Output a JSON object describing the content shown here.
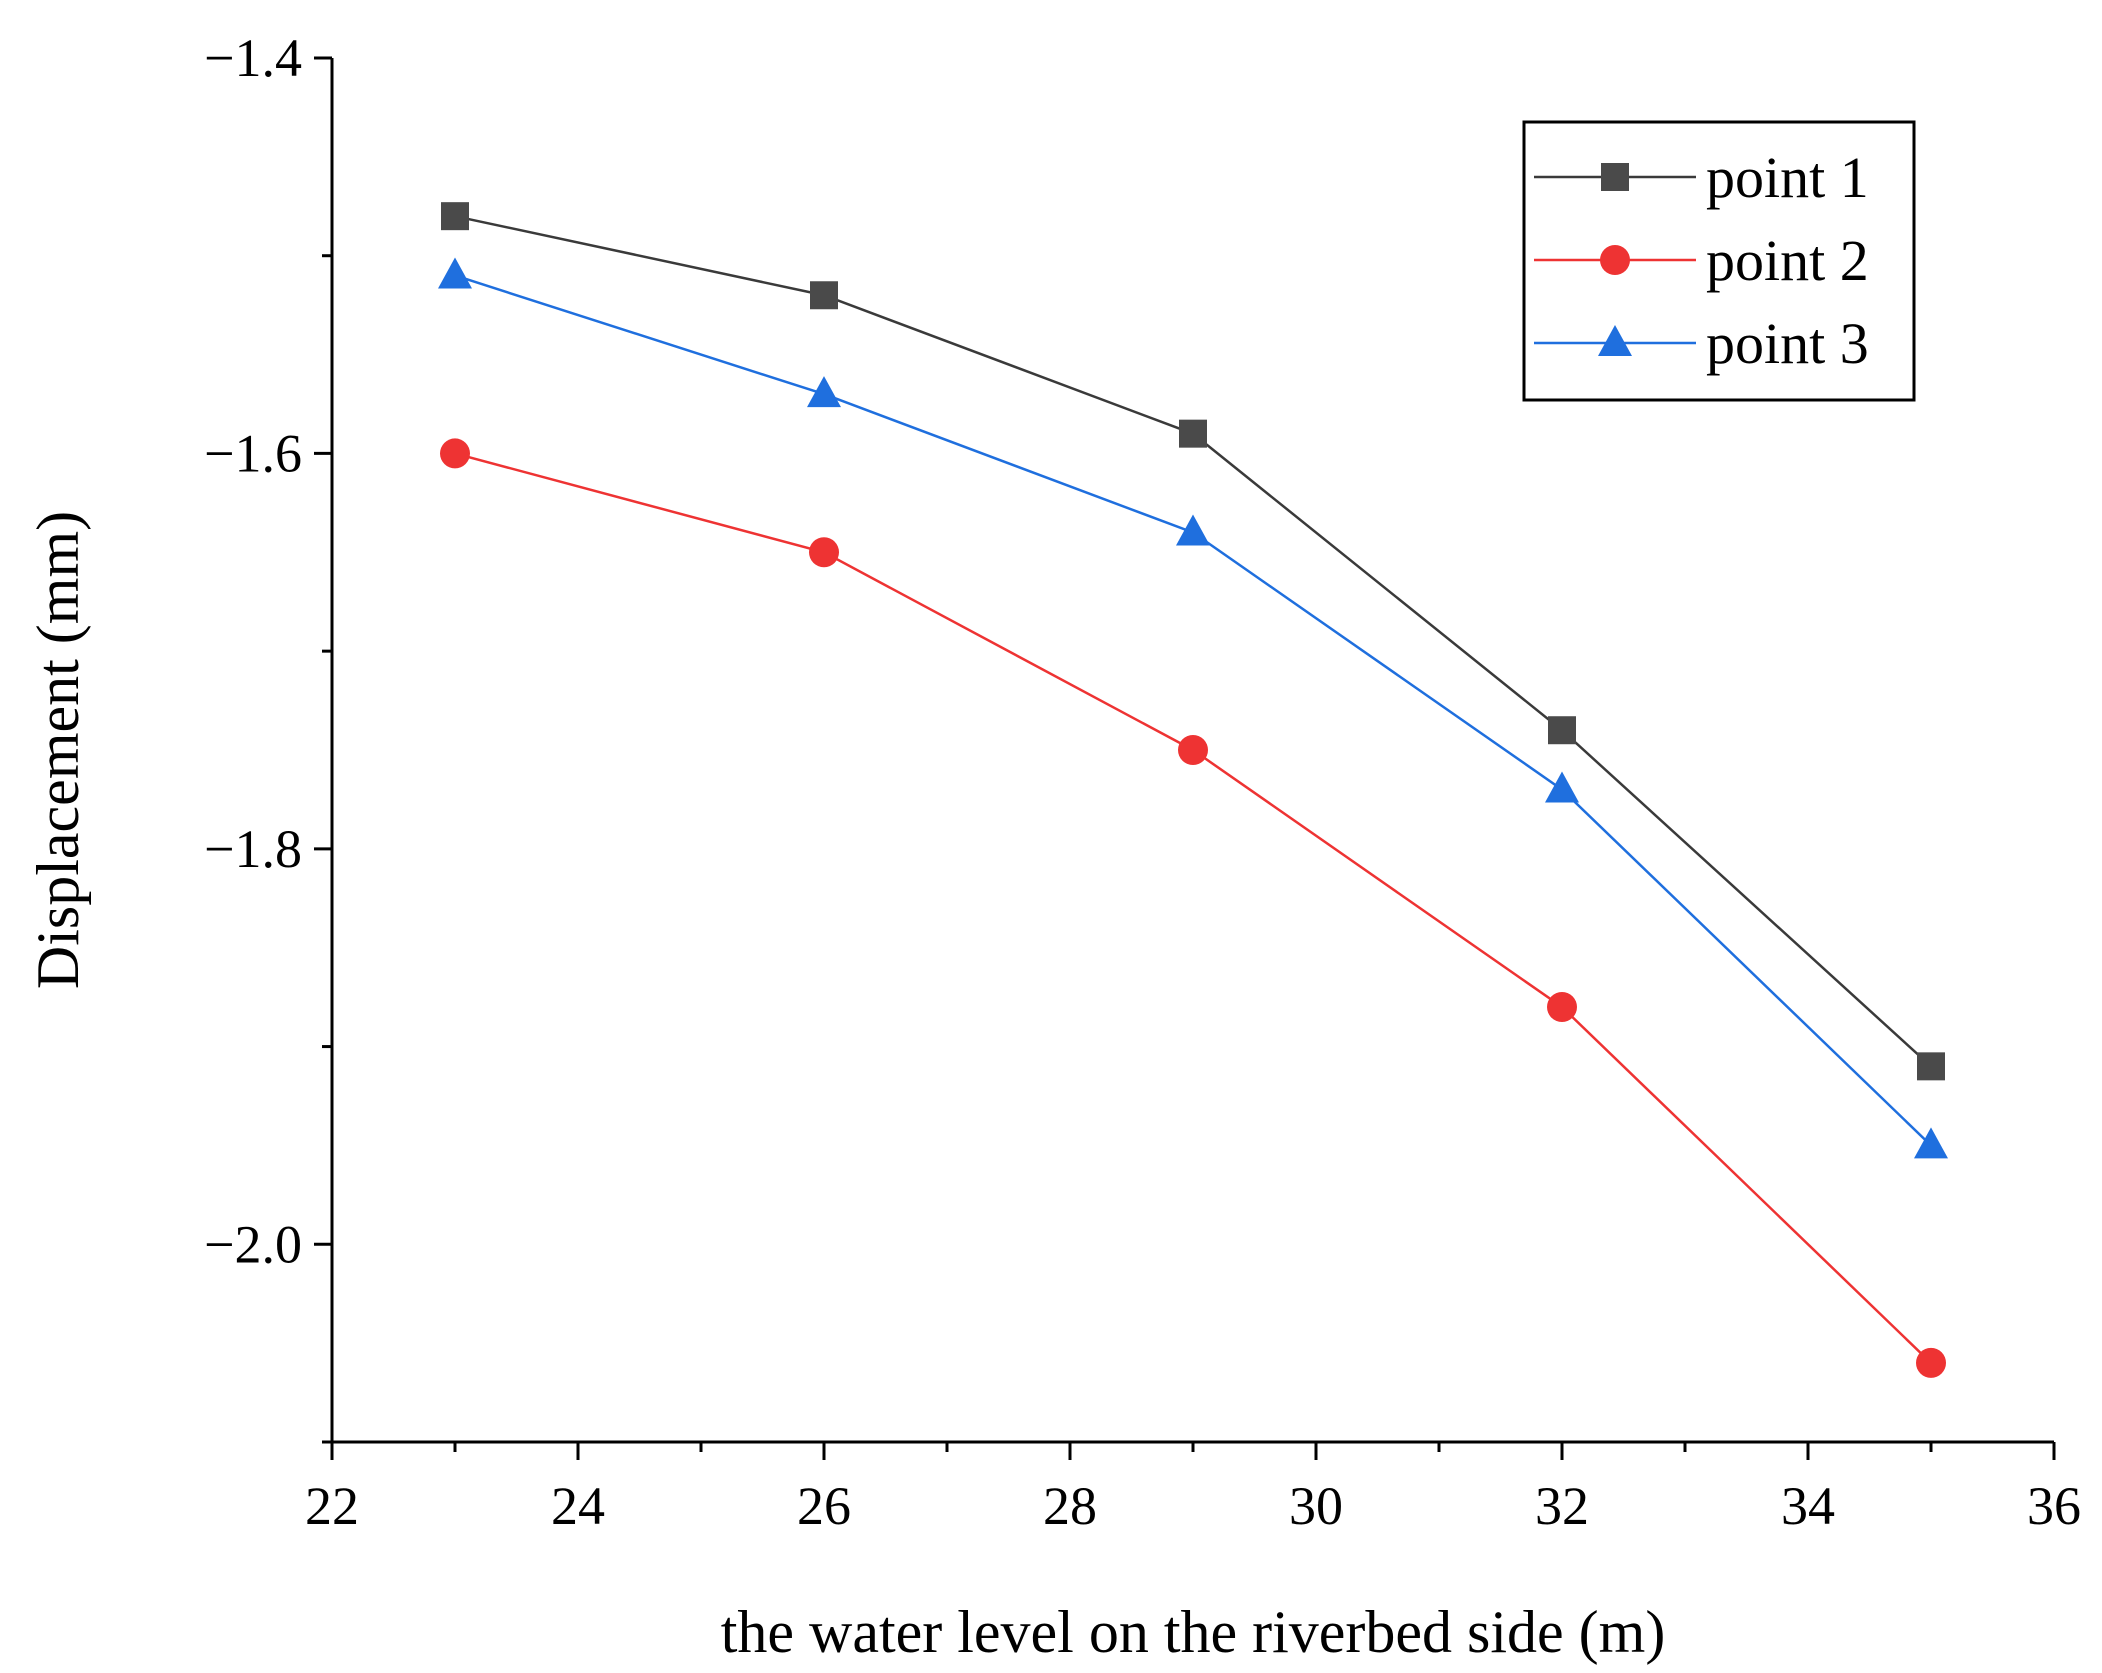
{
  "chart_data": {
    "type": "line",
    "title": "",
    "xlabel": "the water level on the riverbed side (m)",
    "ylabel": "Displacement (mm)",
    "x": [
      23,
      26,
      29,
      32,
      35
    ],
    "xlim": [
      22,
      36
    ],
    "ylim": [
      -2.1,
      -1.4
    ],
    "xticks": [
      22,
      24,
      26,
      28,
      30,
      32,
      34,
      36
    ],
    "xtick_labels": [
      "22",
      "24",
      "26",
      "28",
      "30",
      "32",
      "34",
      "36"
    ],
    "yticks": [
      -1.4,
      -1.6,
      -1.8,
      -2.0
    ],
    "ytick_labels": [
      "−1.4",
      "−1.6",
      "−1.8",
      "−2.0"
    ],
    "grid": false,
    "legend_position": "top-right",
    "series": [
      {
        "name": "point 1",
        "values": [
          -1.48,
          -1.52,
          -1.59,
          -1.74,
          -1.91
        ],
        "color": "#4a4a4a",
        "line_color": "#3a3a3a",
        "marker": "square"
      },
      {
        "name": "point 2",
        "values": [
          -1.6,
          -1.65,
          -1.75,
          -1.88,
          -2.06
        ],
        "color": "#ee3333",
        "line_color": "#ee3333",
        "marker": "circle"
      },
      {
        "name": "point 3",
        "values": [
          -1.51,
          -1.57,
          -1.64,
          -1.77,
          -1.95
        ],
        "color": "#1f6fde",
        "line_color": "#1f6fde",
        "marker": "triangle"
      }
    ]
  }
}
